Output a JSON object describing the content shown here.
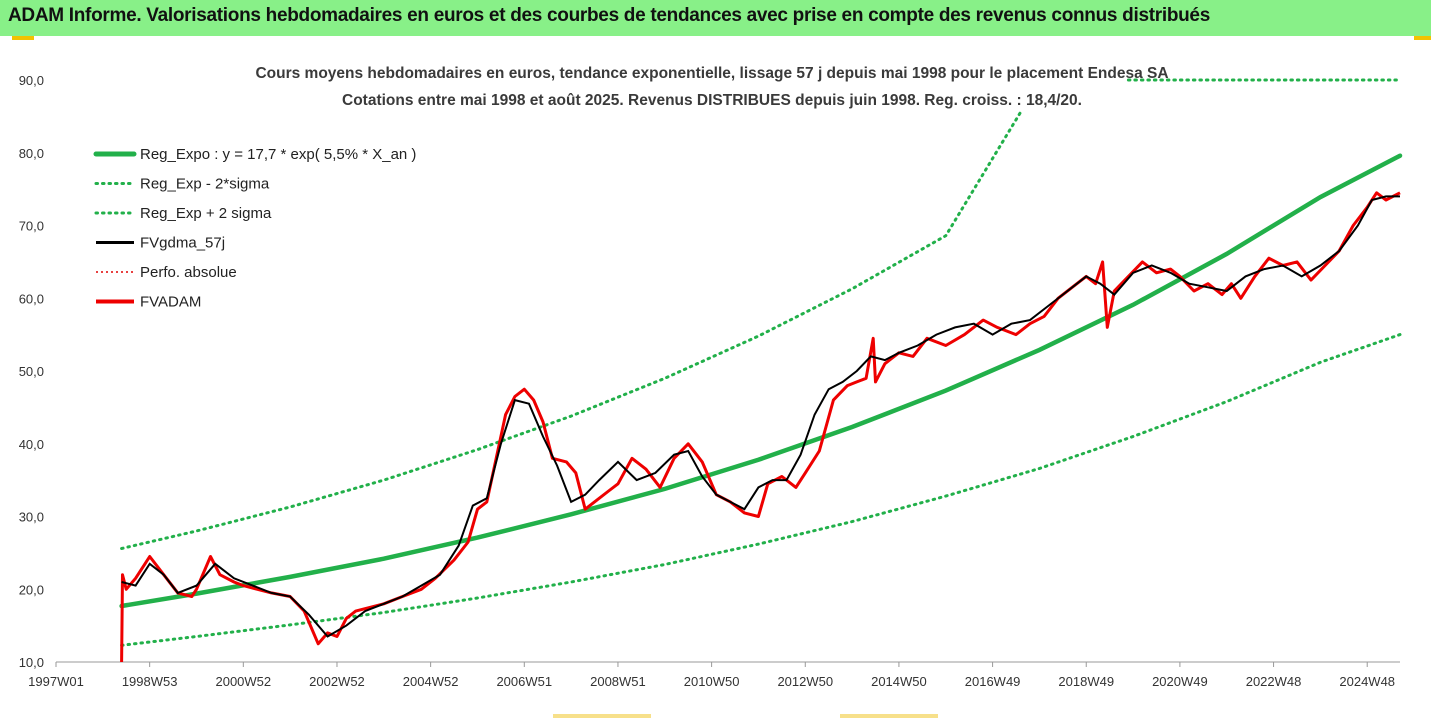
{
  "header": {
    "title": "ADAM Informe. Valorisations hebdomadaires en euros et des courbes de tendances avec prise en compte des revenus connus distribués"
  },
  "chart_data": {
    "type": "line",
    "subtitle_lines": [
      "Cours moyens hebdomadaires en euros, tendance exponentielle, lissage 57 j depuis mai 1998 pour le placement Endesa SA",
      "Cotations entre mai 1998 et août 2025. Revenus DISTRIBUES depuis juin 1998. Reg. croiss. : 18,4/20."
    ],
    "xlabel": "",
    "ylabel": "",
    "ylim": [
      10,
      90
    ],
    "y_ticks": [
      10,
      20,
      30,
      40,
      50,
      60,
      70,
      80,
      90
    ],
    "y_tick_labels": [
      "10,0",
      "20,0",
      "30,0",
      "40,0",
      "50,0",
      "60,0",
      "70,0",
      "80,0",
      "90,0"
    ],
    "xlim": [
      1997.0,
      2025.7
    ],
    "x_ticks": [
      1997.0,
      1999.0,
      2001.0,
      2003.0,
      2005.0,
      2007.0,
      2009.0,
      2011.0,
      2013.0,
      2015.0,
      2017.0,
      2019.0,
      2021.0,
      2023.0,
      2025.0
    ],
    "x_tick_labels": [
      "1997W01",
      "1998W53",
      "2000W52",
      "2002W52",
      "2004W52",
      "2006W51",
      "2008W51",
      "2010W50",
      "2012W50",
      "2014W50",
      "2016W49",
      "2018W49",
      "2020W49",
      "2022W48",
      "2024W48"
    ],
    "grid": false,
    "legend_position": "top-left",
    "colors": {
      "trend": "#22b04a",
      "sigma": "#22b04a",
      "smooth": "#000000",
      "perf": "#e00000",
      "fvadam": "#ee0000",
      "header_bg": "#88f088",
      "accent": "#f3c200"
    },
    "series": [
      {
        "name": "Reg_Expo : y = 17,7 * exp( 5,5% *  X_an )",
        "style": "solid-thick",
        "x": [
          1998.4,
          2000.0,
          2002.0,
          2004.0,
          2006.0,
          2008.0,
          2010.0,
          2012.0,
          2014.0,
          2016.0,
          2018.0,
          2020.0,
          2022.0,
          2024.0,
          2025.7
        ],
        "values": [
          17.7,
          19.4,
          21.7,
          24.2,
          27.1,
          30.3,
          33.8,
          37.8,
          42.3,
          47.3,
          52.9,
          59.1,
          66.1,
          73.9,
          79.6
        ]
      },
      {
        "name": "Reg_Exp - 2*sigma",
        "style": "dotted",
        "x": [
          1998.4,
          2000.0,
          2002.0,
          2004.0,
          2006.0,
          2008.0,
          2010.0,
          2012.0,
          2014.0,
          2016.0,
          2018.0,
          2020.0,
          2022.0,
          2024.0,
          2025.7
        ],
        "values": [
          12.3,
          13.5,
          15.1,
          16.8,
          18.8,
          21.0,
          23.4,
          26.2,
          29.3,
          32.8,
          36.6,
          41.0,
          45.8,
          51.2,
          55.0
        ]
      },
      {
        "name": "Reg_Exp + 2 sigma",
        "style": "dotted",
        "x": [
          1998.4,
          2000.0,
          2002.0,
          2004.0,
          2006.0,
          2008.0,
          2010.0,
          2012.0,
          2014.0,
          2016.0,
          2017.6
        ],
        "values": [
          25.6,
          28.0,
          31.3,
          35.0,
          39.2,
          43.8,
          49.0,
          54.8,
          61.3,
          68.6,
          85.6
        ]
      },
      {
        "name": "FVgdma_57j",
        "style": "solid-thin",
        "x": [
          1998.4,
          1998.7,
          1999.0,
          1999.3,
          1999.6,
          2000.0,
          2000.4,
          2000.8,
          2001.2,
          2001.6,
          2002.0,
          2002.4,
          2002.8,
          2003.2,
          2003.6,
          2004.0,
          2004.4,
          2004.8,
          2005.2,
          2005.6,
          2005.9,
          2006.2,
          2006.5,
          2006.8,
          2007.1,
          2007.4,
          2007.7,
          2008.0,
          2008.3,
          2008.6,
          2009.0,
          2009.4,
          2009.8,
          2010.2,
          2010.5,
          2010.8,
          2011.1,
          2011.4,
          2011.7,
          2012.0,
          2012.3,
          2012.6,
          2012.9,
          2013.2,
          2013.5,
          2013.8,
          2014.1,
          2014.4,
          2014.7,
          2015.0,
          2015.4,
          2015.8,
          2016.2,
          2016.6,
          2017.0,
          2017.4,
          2017.8,
          2018.2,
          2018.6,
          2019.0,
          2019.3,
          2019.6,
          2020.0,
          2020.4,
          2020.8,
          2021.2,
          2021.6,
          2022.0,
          2022.4,
          2022.8,
          2023.2,
          2023.6,
          2024.0,
          2024.4,
          2024.8,
          2025.1,
          2025.4,
          2025.7
        ],
        "values": [
          21.0,
          20.5,
          23.5,
          22.0,
          19.5,
          20.5,
          23.5,
          21.5,
          20.5,
          19.5,
          19.0,
          16.5,
          13.5,
          15.0,
          17.0,
          18.0,
          19.0,
          20.5,
          22.0,
          26.0,
          31.5,
          32.5,
          40.0,
          46.0,
          45.5,
          41.0,
          37.0,
          32.0,
          33.0,
          35.0,
          37.5,
          35.0,
          36.0,
          38.5,
          39.0,
          35.5,
          33.0,
          32.0,
          31.0,
          34.0,
          35.0,
          35.0,
          38.5,
          44.0,
          47.5,
          48.5,
          50.0,
          52.0,
          51.5,
          52.5,
          53.5,
          55.0,
          56.0,
          56.5,
          55.0,
          56.5,
          57.0,
          59.0,
          61.0,
          63.0,
          62.0,
          60.5,
          63.5,
          64.5,
          63.5,
          62.0,
          61.5,
          61.0,
          63.0,
          64.0,
          64.5,
          63.0,
          64.5,
          66.5,
          70.0,
          73.5,
          74.0,
          74.0
        ]
      },
      {
        "name": "Perfo. absolue",
        "style": "dotted-red",
        "x": [
          1998.4,
          1999.0,
          2000.0,
          2001.0,
          2002.0,
          2003.0,
          2004.0,
          2005.0,
          2005.9,
          2006.8,
          2007.4,
          2008.0,
          2009.0,
          2010.0,
          2011.0,
          2012.0,
          2013.0,
          2014.0,
          2015.0,
          2016.0,
          2017.0,
          2018.0,
          2019.0,
          2020.0,
          2021.0,
          2022.0,
          2023.0,
          2024.0,
          2025.0,
          2025.7
        ],
        "values": [
          21.0,
          23.5,
          20.5,
          20.0,
          19.0,
          14.0,
          18.0,
          21.0,
          31.5,
          46.0,
          41.0,
          32.0,
          37.5,
          36.0,
          34.0,
          34.0,
          36.0,
          48.5,
          52.5,
          55.0,
          55.0,
          58.0,
          63.0,
          63.5,
          62.0,
          61.0,
          64.5,
          64.5,
          73.0,
          74.0
        ]
      },
      {
        "name": "FVADAM",
        "style": "solid-red",
        "x": [
          1998.4,
          1998.42,
          1998.5,
          1998.7,
          1998.9,
          1999.0,
          1999.3,
          1999.6,
          1999.9,
          2000.0,
          2000.3,
          2000.5,
          2000.8,
          2001.0,
          2001.3,
          2001.6,
          2002.0,
          2002.3,
          2002.6,
          2002.8,
          2003.0,
          2003.2,
          2003.4,
          2003.7,
          2004.0,
          2004.4,
          2004.8,
          2005.1,
          2005.5,
          2005.8,
          2006.0,
          2006.2,
          2006.4,
          2006.6,
          2006.8,
          2007.0,
          2007.2,
          2007.4,
          2007.6,
          2007.9,
          2008.1,
          2008.3,
          2008.5,
          2008.8,
          2009.0,
          2009.3,
          2009.6,
          2009.9,
          2010.2,
          2010.5,
          2010.8,
          2011.1,
          2011.4,
          2011.7,
          2012.0,
          2012.2,
          2012.5,
          2012.8,
          2013.0,
          2013.3,
          2013.6,
          2013.9,
          2014.1,
          2014.3,
          2014.45,
          2014.5,
          2014.7,
          2015.0,
          2015.3,
          2015.6,
          2016.0,
          2016.4,
          2016.8,
          2017.1,
          2017.5,
          2017.8,
          2018.1,
          2018.4,
          2018.7,
          2019.0,
          2019.2,
          2019.35,
          2019.45,
          2019.6,
          2019.9,
          2020.2,
          2020.5,
          2020.8,
          2021.0,
          2021.3,
          2021.6,
          2021.9,
          2022.1,
          2022.3,
          2022.6,
          2022.9,
          2023.2,
          2023.5,
          2023.8,
          2024.1,
          2024.4,
          2024.7,
          2025.0,
          2025.2,
          2025.4,
          2025.7
        ],
        "values": [
          10.0,
          22.0,
          20.0,
          21.5,
          23.5,
          24.5,
          22.0,
          19.5,
          19.0,
          20.0,
          24.5,
          22.0,
          21.0,
          20.5,
          20.0,
          19.5,
          19.0,
          17.0,
          12.5,
          14.0,
          13.5,
          16.0,
          17.0,
          17.5,
          18.0,
          19.0,
          20.0,
          21.5,
          24.0,
          26.5,
          31.0,
          32.0,
          38.0,
          44.0,
          46.5,
          47.5,
          46.0,
          43.0,
          38.0,
          37.5,
          36.0,
          31.0,
          32.0,
          33.5,
          34.5,
          38.0,
          36.5,
          34.0,
          38.0,
          40.0,
          37.5,
          33.0,
          32.0,
          30.5,
          30.0,
          34.5,
          35.5,
          34.0,
          36.0,
          39.0,
          46.0,
          48.0,
          48.5,
          49.0,
          54.5,
          48.5,
          51.0,
          52.5,
          52.0,
          54.5,
          53.5,
          55.0,
          57.0,
          56.0,
          55.0,
          56.5,
          57.5,
          60.0,
          61.5,
          63.0,
          62.0,
          65.0,
          56.0,
          61.0,
          63.0,
          65.0,
          63.5,
          64.0,
          63.0,
          61.0,
          62.0,
          60.5,
          62.0,
          60.0,
          63.0,
          65.5,
          64.5,
          65.0,
          62.5,
          64.5,
          66.5,
          70.0,
          72.5,
          74.5,
          73.5,
          74.5
        ]
      }
    ],
    "plus_sigma_tail": {
      "x": [
        2019.9,
        2025.7
      ],
      "values": [
        90.0,
        90.0
      ]
    }
  }
}
